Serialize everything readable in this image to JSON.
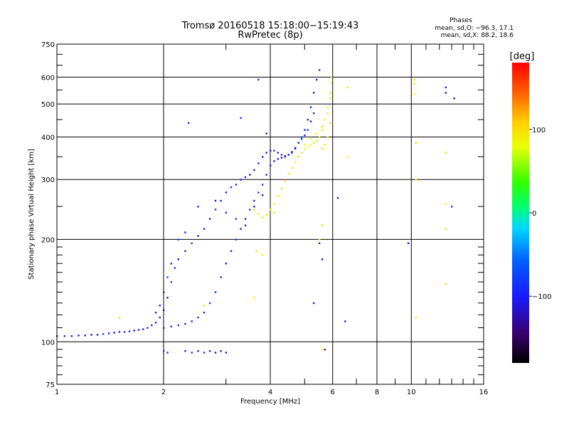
{
  "chart_data": {
    "type": "scatter",
    "title": "Tromsø 20160518 15:18:00−15:19:43",
    "subtitle": "RwPretec (8p)",
    "xlabel": "Frequency [MHz]",
    "ylabel": "Stationary phase Virtual Height [km]",
    "x_scale": "log",
    "y_scale": "log",
    "xlim": [
      1,
      16
    ],
    "ylim": [
      75,
      750
    ],
    "x_major_ticks": [
      1,
      2,
      4,
      6,
      8,
      10,
      16
    ],
    "x_tick_labels": [
      "1",
      "2",
      "4",
      "6",
      "8",
      "10",
      "16"
    ],
    "x_minor_ticks": [
      3,
      5,
      7,
      9,
      11,
      12,
      13,
      14,
      15
    ],
    "y_major_ticks": [
      75,
      100,
      200,
      300,
      400,
      500,
      600,
      750
    ],
    "y_tick_labels": [
      "75",
      "100",
      "200",
      "300",
      "400",
      "500",
      "600",
      "750"
    ],
    "y_minor_ticks": [
      80,
      85,
      90,
      95,
      110,
      120,
      130,
      140,
      150,
      160,
      170,
      180,
      190,
      250,
      350,
      450,
      550,
      650,
      700
    ],
    "grid": true,
    "phase_stats": {
      "heading": "Phases",
      "line_o": "mean, sd,O: −96.3, 17.1",
      "line_x": "mean, sd,X:  88.2, 18.6"
    },
    "colorbar": {
      "label": "[deg]",
      "range": [
        -180,
        180
      ],
      "ticks": [
        -100,
        0,
        100
      ],
      "tick_labels": [
        "−100",
        "0",
        "100"
      ],
      "colormap": "rainbow"
    },
    "series": [
      {
        "mode": "O",
        "phase_mean": -96.3,
        "points": [
          [
            1.0,
            104
          ],
          [
            1.05,
            104
          ],
          [
            1.1,
            104
          ],
          [
            1.15,
            104.5
          ],
          [
            1.2,
            104.5
          ],
          [
            1.25,
            105
          ],
          [
            1.3,
            105
          ],
          [
            1.35,
            105.5
          ],
          [
            1.4,
            106
          ],
          [
            1.45,
            106.5
          ],
          [
            1.5,
            107
          ],
          [
            1.55,
            107
          ],
          [
            1.6,
            107.5
          ],
          [
            1.65,
            108
          ],
          [
            1.7,
            108.5
          ],
          [
            1.75,
            109
          ],
          [
            1.8,
            110
          ],
          [
            1.85,
            112
          ],
          [
            1.9,
            114
          ],
          [
            1.95,
            118
          ],
          [
            2.0,
            124
          ],
          [
            2.05,
            135
          ],
          [
            2.1,
            150
          ],
          [
            2.15,
            165
          ],
          [
            2.2,
            175
          ],
          [
            2.3,
            185
          ],
          [
            2.4,
            195
          ],
          [
            2.5,
            205
          ],
          [
            2.6,
            215
          ],
          [
            2.7,
            230
          ],
          [
            2.8,
            245
          ],
          [
            2.9,
            260
          ],
          [
            3.0,
            275
          ],
          [
            3.1,
            285
          ],
          [
            3.2,
            290
          ],
          [
            3.3,
            300
          ],
          [
            3.4,
            305
          ],
          [
            3.5,
            310
          ],
          [
            3.6,
            320
          ],
          [
            3.7,
            335
          ],
          [
            3.8,
            350
          ],
          [
            3.9,
            360
          ],
          [
            4.0,
            365
          ],
          [
            4.1,
            365
          ],
          [
            4.2,
            360
          ],
          [
            4.3,
            355
          ],
          [
            4.4,
            352
          ],
          [
            4.5,
            355
          ],
          [
            4.6,
            360
          ],
          [
            4.7,
            370
          ],
          [
            4.8,
            385
          ],
          [
            4.9,
            400
          ],
          [
            5.0,
            420
          ],
          [
            5.1,
            450
          ],
          [
            5.2,
            490
          ],
          [
            5.3,
            540
          ],
          [
            5.4,
            590
          ],
          [
            5.5,
            630
          ],
          [
            2.0,
            110
          ],
          [
            2.1,
            111
          ],
          [
            2.2,
            112
          ],
          [
            2.3,
            113
          ],
          [
            2.4,
            115
          ],
          [
            2.5,
            118
          ],
          [
            2.6,
            122
          ],
          [
            2.7,
            130
          ],
          [
            2.8,
            140
          ],
          [
            2.9,
            155
          ],
          [
            3.0,
            170
          ],
          [
            3.1,
            185
          ],
          [
            3.2,
            200
          ],
          [
            3.3,
            215
          ],
          [
            3.4,
            230
          ],
          [
            3.5,
            245
          ],
          [
            3.6,
            260
          ],
          [
            3.7,
            275
          ],
          [
            3.8,
            290
          ],
          [
            3.9,
            310
          ],
          [
            4.0,
            330
          ],
          [
            4.1,
            340
          ],
          [
            4.2,
            345
          ],
          [
            4.3,
            348
          ],
          [
            4.4,
            350
          ],
          [
            4.5,
            355
          ],
          [
            4.6,
            362
          ],
          [
            4.7,
            372
          ],
          [
            4.8,
            385
          ],
          [
            4.9,
            395
          ],
          [
            5.0,
            405
          ],
          [
            5.1,
            420
          ],
          [
            5.2,
            445
          ],
          [
            5.3,
            470
          ],
          [
            1.9,
            122
          ],
          [
            1.95,
            128
          ],
          [
            2.0,
            140
          ],
          [
            2.05,
            155
          ],
          [
            2.1,
            170
          ],
          [
            2.2,
            200
          ],
          [
            2.3,
            210
          ],
          [
            2.5,
            250
          ],
          [
            2.8,
            260
          ],
          [
            3.0,
            240
          ],
          [
            3.2,
            230
          ],
          [
            3.4,
            220
          ],
          [
            3.6,
            250
          ],
          [
            3.8,
            270
          ],
          [
            2.0,
            94
          ],
          [
            2.05,
            93
          ],
          [
            2.3,
            94
          ],
          [
            2.4,
            93
          ],
          [
            2.5,
            94
          ],
          [
            2.6,
            93
          ],
          [
            2.7,
            94
          ],
          [
            2.8,
            93
          ],
          [
            2.9,
            94
          ],
          [
            3.0,
            93
          ],
          [
            2.35,
            440
          ],
          [
            3.3,
            455
          ],
          [
            3.7,
            590
          ],
          [
            3.9,
            410
          ],
          [
            5.5,
            195
          ],
          [
            5.6,
            175
          ],
          [
            6.2,
            265
          ],
          [
            6.5,
            115
          ],
          [
            9.8,
            195
          ],
          [
            12.5,
            560
          ],
          [
            12.5,
            540
          ],
          [
            13.2,
            520
          ],
          [
            13.0,
            250
          ],
          [
            5.7,
            95
          ],
          [
            5.3,
            130
          ]
        ]
      },
      {
        "mode": "X",
        "phase_mean": 88.2,
        "points": [
          [
            3.6,
            245
          ],
          [
            3.7,
            238
          ],
          [
            3.8,
            232
          ],
          [
            3.9,
            236
          ],
          [
            4.0,
            245
          ],
          [
            4.1,
            255
          ],
          [
            4.2,
            268
          ],
          [
            4.3,
            282
          ],
          [
            4.4,
            298
          ],
          [
            4.5,
            312
          ],
          [
            4.6,
            325
          ],
          [
            4.7,
            338
          ],
          [
            4.8,
            350
          ],
          [
            4.9,
            360
          ],
          [
            5.0,
            368
          ],
          [
            5.1,
            375
          ],
          [
            5.2,
            380
          ],
          [
            5.3,
            385
          ],
          [
            5.4,
            390
          ],
          [
            5.5,
            400
          ],
          [
            5.6,
            420
          ],
          [
            5.7,
            450
          ],
          [
            5.8,
            490
          ],
          [
            5.9,
            540
          ],
          [
            5.95,
            600
          ],
          [
            5.0,
            380
          ],
          [
            5.2,
            395
          ],
          [
            5.4,
            410
          ],
          [
            5.6,
            430
          ],
          [
            5.8,
            470
          ],
          [
            5.9,
            520
          ],
          [
            5.95,
            580
          ],
          [
            5.6,
            370
          ],
          [
            5.7,
            380
          ],
          [
            5.8,
            400
          ],
          [
            5.9,
            440
          ],
          [
            3.65,
            185
          ],
          [
            3.8,
            180
          ],
          [
            4.1,
            240
          ],
          [
            5.6,
            220
          ],
          [
            5.5,
            200
          ],
          [
            6.6,
            350
          ],
          [
            6.6,
            560
          ],
          [
            10.2,
            590
          ],
          [
            10.2,
            575
          ],
          [
            10.2,
            535
          ],
          [
            10.3,
            385
          ],
          [
            10.3,
            300
          ],
          [
            12.5,
            360
          ],
          [
            12.5,
            255
          ],
          [
            12.5,
            215
          ],
          [
            12.5,
            148
          ],
          [
            10.3,
            118
          ],
          [
            1.5,
            118
          ],
          [
            2.6,
            128
          ],
          [
            3.6,
            135
          ],
          [
            5.6,
            95
          ]
        ]
      }
    ]
  }
}
